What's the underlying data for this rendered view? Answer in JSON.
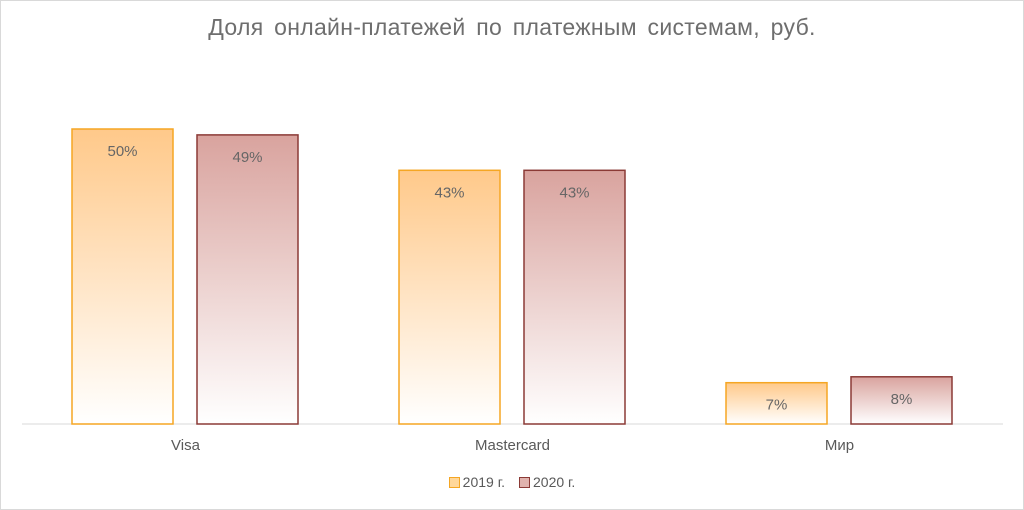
{
  "chart_data": {
    "type": "bar",
    "title": "Доля онлайн-платежей по платежным системам, руб.",
    "categories": [
      "Visa",
      "Mastercard",
      "Мир"
    ],
    "series": [
      {
        "name": "2019 г.",
        "values": [
          50,
          43,
          7
        ],
        "labels": [
          "50%",
          "43%",
          "7%"
        ],
        "color": "#ffc000",
        "fill_top": "#ffc98a",
        "border": "#f5a623"
      },
      {
        "name": "2020 г.",
        "values": [
          49,
          43,
          8
        ],
        "labels": [
          "49%",
          "43%",
          "8%"
        ],
        "color": "#c0504d",
        "fill_top": "#d9a39e",
        "border": "#8b3a36"
      }
    ],
    "ylim": [
      0,
      50
    ],
    "grid": false,
    "legend_position": "bottom"
  }
}
